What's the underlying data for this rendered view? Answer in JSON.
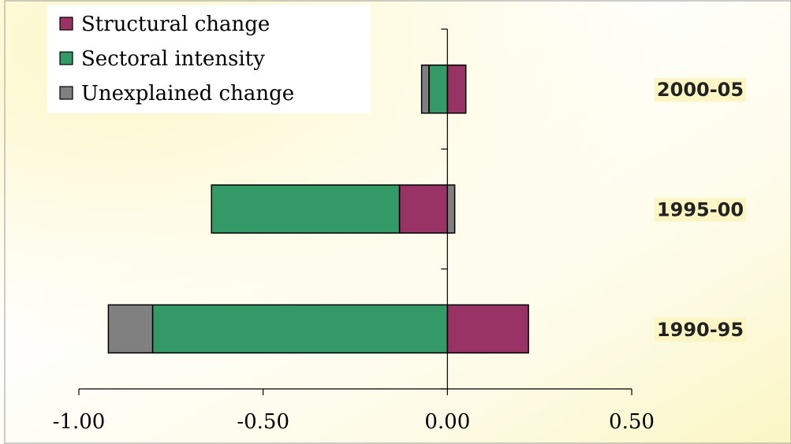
{
  "chart_data": {
    "type": "bar",
    "orientation": "horizontal",
    "stacked": true,
    "categories": [
      "1990-95",
      "1995-00",
      "2000-05"
    ],
    "series": [
      {
        "name": "Structural change",
        "color": "#993366",
        "values": [
          0.22,
          -0.13,
          0.05
        ]
      },
      {
        "name": "Sectoral intensity",
        "color": "#339966",
        "values": [
          -0.8,
          -0.51,
          -0.05
        ]
      },
      {
        "name": "Unexplained change",
        "color": "#808080",
        "values": [
          -0.12,
          0.02,
          -0.02
        ]
      }
    ],
    "xlim": [
      -1.0,
      0.5
    ],
    "xticks": [
      "-1.00",
      "-0.50",
      "0.00",
      "0.50"
    ],
    "xtick_values": [
      -1.0,
      -0.5,
      0.0,
      0.5
    ],
    "legend_position": "top-left",
    "grid": false
  }
}
